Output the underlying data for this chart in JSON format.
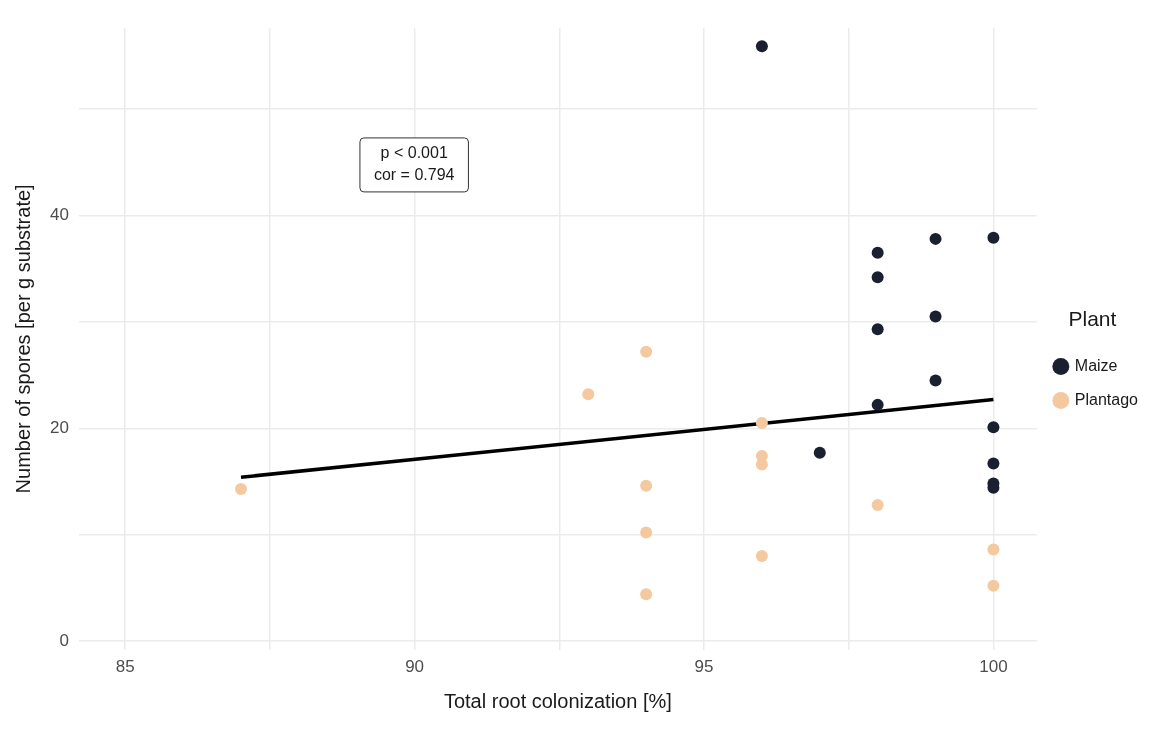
{
  "chart_data": {
    "type": "scatter",
    "xlabel": "Total root colonization [%]",
    "ylabel": "Number of spores [per g substrate]",
    "legend_title": "Plant",
    "legend": "right",
    "grid": true,
    "marker": "circle",
    "xlim": [
      84.2,
      100.75
    ],
    "ylim": [
      -0.8,
      57.6
    ],
    "xticks": [
      85,
      {
        "value": 87.5,
        "label": null
      },
      90,
      {
        "value": 92.5,
        "label": null
      },
      95,
      {
        "value": 97.5,
        "label": null
      },
      100
    ],
    "yticks": [
      0,
      {
        "value": 10,
        "label": null
      },
      20,
      {
        "value": 30,
        "label": null
      },
      40,
      {
        "value": 50,
        "label": null
      }
    ],
    "annotations": [
      "p < 0.001",
      "cor = 0.794"
    ],
    "series": [
      {
        "name": "Maize",
        "color": "#1b2030",
        "x": [
          96,
          98,
          98,
          98,
          98,
          99,
          99,
          99,
          100,
          100,
          100,
          100,
          100,
          97
        ],
        "values": [
          55.9,
          36.5,
          34.2,
          29.3,
          22.2,
          37.8,
          30.5,
          24.5,
          37.9,
          20.1,
          16.7,
          14.8,
          14.4,
          17.7
        ]
      },
      {
        "name": "Plantago",
        "color": "#f5c9a0",
        "x": [
          87,
          93,
          94,
          94,
          94,
          94,
          96,
          96,
          96,
          96,
          98,
          100,
          100
        ],
        "values": [
          14.3,
          23.2,
          27.2,
          14.6,
          10.2,
          4.4,
          20.5,
          17.4,
          16.6,
          8.0,
          12.8,
          8.6,
          5.2
        ]
      },
      {
        "type": "line",
        "color": "#000000",
        "x": [
          87,
          100
        ],
        "values": [
          15.4,
          22.7
        ],
        "line_style": "solid",
        "marker": "none"
      }
    ]
  }
}
